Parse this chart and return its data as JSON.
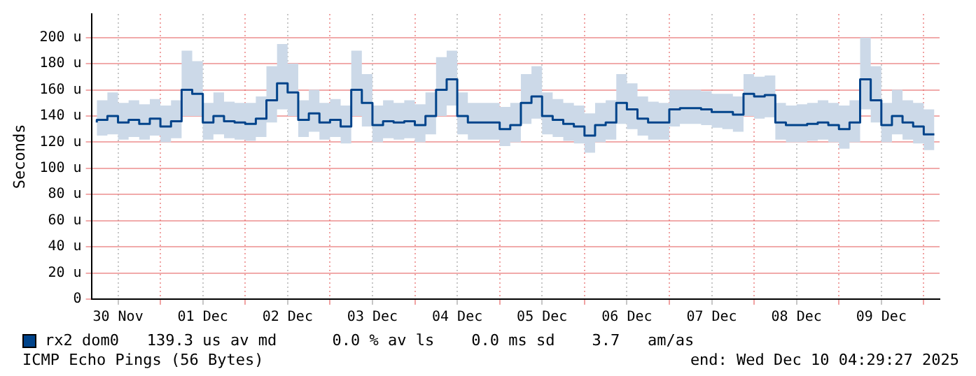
{
  "chart_data": {
    "type": "step",
    "ylabel": "Seconds",
    "annotations": [
      "139.3 us av md      0.0 % av ls    0.0 ms sd    3.7   am/as",
      "ICMP Echo Pings (56 Bytes)",
      "end: Wed Dec 10 04:29:27 2025"
    ],
    "x": [
      "2025-11-30T06:00",
      "2025-11-30T09:00",
      "2025-11-30T12:00",
      "2025-11-30T15:00",
      "2025-11-30T18:00",
      "2025-11-30T21:00",
      "2025-12-01T00:00",
      "2025-12-01T03:00",
      "2025-12-01T06:00",
      "2025-12-01T09:00",
      "2025-12-01T12:00",
      "2025-12-01T15:00",
      "2025-12-01T18:00",
      "2025-12-01T21:00",
      "2025-12-02T00:00",
      "2025-12-02T03:00",
      "2025-12-02T06:00",
      "2025-12-02T09:00",
      "2025-12-02T12:00",
      "2025-12-02T15:00",
      "2025-12-02T18:00",
      "2025-12-02T21:00",
      "2025-12-03T00:00",
      "2025-12-03T03:00",
      "2025-12-03T06:00",
      "2025-12-03T09:00",
      "2025-12-03T12:00",
      "2025-12-03T15:00",
      "2025-12-03T18:00",
      "2025-12-03T21:00",
      "2025-12-04T00:00",
      "2025-12-04T03:00",
      "2025-12-04T06:00",
      "2025-12-04T09:00",
      "2025-12-04T12:00",
      "2025-12-04T15:00",
      "2025-12-04T18:00",
      "2025-12-04T21:00",
      "2025-12-05T00:00",
      "2025-12-05T03:00",
      "2025-12-05T06:00",
      "2025-12-05T09:00",
      "2025-12-05T12:00",
      "2025-12-05T15:00",
      "2025-12-05T18:00",
      "2025-12-05T21:00",
      "2025-12-06T00:00",
      "2025-12-06T03:00",
      "2025-12-06T06:00",
      "2025-12-06T09:00",
      "2025-12-06T12:00",
      "2025-12-06T15:00",
      "2025-12-06T18:00",
      "2025-12-06T21:00",
      "2025-12-07T00:00",
      "2025-12-07T03:00",
      "2025-12-07T06:00",
      "2025-12-07T09:00",
      "2025-12-07T12:00",
      "2025-12-07T15:00",
      "2025-12-07T18:00",
      "2025-12-07T21:00",
      "2025-12-08T00:00",
      "2025-12-08T03:00",
      "2025-12-08T06:00",
      "2025-12-08T09:00",
      "2025-12-08T12:00",
      "2025-12-08T15:00",
      "2025-12-08T18:00",
      "2025-12-08T21:00",
      "2025-12-09T00:00",
      "2025-12-09T03:00",
      "2025-12-09T06:00",
      "2025-12-09T09:00",
      "2025-12-09T12:00",
      "2025-12-09T15:00",
      "2025-12-09T18:00",
      "2025-12-09T21:00",
      "2025-12-10T00:00",
      "2025-12-10T03:00"
    ],
    "series": [
      {
        "name": "rx2 dom0",
        "color": "#00438a",
        "values": [
          135,
          137,
          140,
          135,
          137,
          134,
          138,
          132,
          136,
          160,
          157,
          135,
          140,
          136,
          135,
          134,
          138,
          152,
          165,
          158,
          137,
          142,
          135,
          137,
          132,
          160,
          150,
          133,
          136,
          135,
          136,
          133,
          140,
          160,
          168,
          140,
          135,
          135,
          135,
          130,
          133,
          150,
          155,
          140,
          137,
          134,
          132,
          125,
          133,
          135,
          150,
          145,
          138,
          135,
          135,
          145,
          146,
          146,
          145,
          143,
          143,
          141,
          157,
          155,
          156,
          135,
          133,
          133,
          134,
          135,
          133,
          130,
          135,
          168,
          152,
          133,
          140,
          135,
          132,
          126
        ],
        "lower": [
          123,
          125,
          126,
          122,
          124,
          122,
          125,
          120,
          123,
          140,
          140,
          122,
          126,
          123,
          122,
          121,
          124,
          135,
          145,
          140,
          124,
          128,
          122,
          124,
          119,
          140,
          132,
          120,
          123,
          122,
          123,
          120,
          126,
          140,
          148,
          126,
          122,
          122,
          122,
          117,
          120,
          134,
          138,
          126,
          124,
          121,
          119,
          112,
          120,
          122,
          134,
          130,
          125,
          122,
          122,
          132,
          134,
          134,
          133,
          131,
          130,
          128,
          140,
          138,
          139,
          122,
          120,
          120,
          121,
          122,
          120,
          115,
          120,
          145,
          135,
          120,
          126,
          122,
          119,
          114
        ],
        "upper": [
          150,
          152,
          158,
          150,
          152,
          149,
          153,
          148,
          152,
          190,
          182,
          150,
          158,
          151,
          150,
          150,
          155,
          178,
          195,
          180,
          152,
          160,
          150,
          153,
          148,
          190,
          172,
          148,
          152,
          150,
          152,
          149,
          158,
          185,
          190,
          158,
          150,
          150,
          150,
          147,
          150,
          172,
          178,
          158,
          153,
          150,
          148,
          142,
          150,
          152,
          172,
          165,
          155,
          151,
          150,
          160,
          160,
          160,
          159,
          157,
          157,
          155,
          172,
          170,
          171,
          150,
          148,
          149,
          150,
          152,
          150,
          148,
          152,
          200,
          178,
          150,
          160,
          152,
          150,
          145
        ]
      }
    ],
    "xlim": [
      "2025-11-30T04:29",
      "2025-12-10T04:29"
    ],
    "xticks": [
      {
        "value": "2025-11-30T12:00",
        "label": "30 Nov"
      },
      {
        "value": "2025-12-01T00:00",
        "label": null
      },
      {
        "value": "2025-12-01T12:00",
        "label": "01 Dec"
      },
      {
        "value": "2025-12-02T00:00",
        "label": null
      },
      {
        "value": "2025-12-02T12:00",
        "label": "02 Dec"
      },
      {
        "value": "2025-12-03T00:00",
        "label": null
      },
      {
        "value": "2025-12-03T12:00",
        "label": "03 Dec"
      },
      {
        "value": "2025-12-04T00:00",
        "label": null
      },
      {
        "value": "2025-12-04T12:00",
        "label": "04 Dec"
      },
      {
        "value": "2025-12-05T00:00",
        "label": null
      },
      {
        "value": "2025-12-05T12:00",
        "label": "05 Dec"
      },
      {
        "value": "2025-12-06T00:00",
        "label": null
      },
      {
        "value": "2025-12-06T12:00",
        "label": "06 Dec"
      },
      {
        "value": "2025-12-07T00:00",
        "label": null
      },
      {
        "value": "2025-12-07T12:00",
        "label": "07 Dec"
      },
      {
        "value": "2025-12-08T00:00",
        "label": null
      },
      {
        "value": "2025-12-08T12:00",
        "label": "08 Dec"
      },
      {
        "value": "2025-12-09T00:00",
        "label": null
      },
      {
        "value": "2025-12-09T12:00",
        "label": "09 Dec"
      },
      {
        "value": "2025-12-10T00:00",
        "label": null
      }
    ],
    "ylim": [
      0,
      218
    ],
    "yticks": [
      {
        "value": 0,
        "label": "0"
      },
      {
        "value": 20,
        "label": "20 u"
      },
      {
        "value": 40,
        "label": "40 u"
      },
      {
        "value": 60,
        "label": "60 u"
      },
      {
        "value": 80,
        "label": "80 u"
      },
      {
        "value": 100,
        "label": "100 u"
      },
      {
        "value": 120,
        "label": "120 u"
      },
      {
        "value": 140,
        "label": "140 u"
      },
      {
        "value": 160,
        "label": "160 u"
      },
      {
        "value": 180,
        "label": "180 u"
      },
      {
        "value": 200,
        "label": "200 u"
      }
    ],
    "grid": true,
    "legend": "bottom left",
    "marker": "none",
    "line_style": "solid"
  }
}
